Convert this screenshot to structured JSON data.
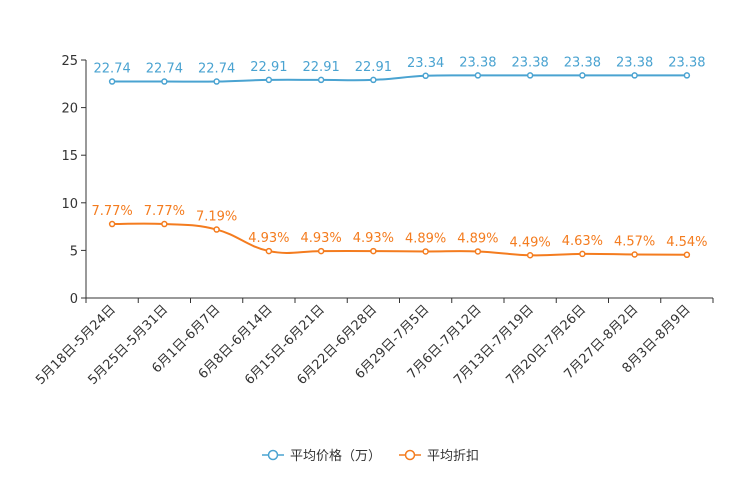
{
  "chart_data": {
    "type": "line",
    "categories": [
      "5月18日-5月24日",
      "5月25日-5月31日",
      "6月1日-6月7日",
      "6月8日-6月14日",
      "6月15日-6月21日",
      "6月22日-6月28日",
      "6月29日-7月5日",
      "7月6日-7月12日",
      "7月13日-7月19日",
      "7月20日-7月26日",
      "7月27日-8月2日",
      "8月3日-8月9日"
    ],
    "series": [
      {
        "name": "平均价格（万）",
        "color": "#4aa3d1",
        "values": [
          22.74,
          22.74,
          22.74,
          22.91,
          22.91,
          22.91,
          23.34,
          23.38,
          23.38,
          23.38,
          23.38,
          23.38
        ],
        "labels": [
          "22.74",
          "22.74",
          "22.74",
          "22.91",
          "22.91",
          "22.91",
          "23.34",
          "23.38",
          "23.38",
          "23.38",
          "23.38",
          "23.38"
        ]
      },
      {
        "name": "平均折扣",
        "color": "#f47c1f",
        "values": [
          7.77,
          7.77,
          7.19,
          4.93,
          4.93,
          4.93,
          4.89,
          4.89,
          4.49,
          4.63,
          4.57,
          4.54
        ],
        "labels": [
          "7.77%",
          "7.77%",
          "7.19%",
          "4.93%",
          "4.93%",
          "4.93%",
          "4.89%",
          "4.89%",
          "4.49%",
          "4.63%",
          "4.57%",
          "4.54%"
        ]
      }
    ],
    "yticks": [
      0,
      5,
      10,
      15,
      20,
      25
    ],
    "ytick_labels": [
      "0",
      "5",
      "10",
      "15",
      "20",
      "25"
    ],
    "ylim": [
      0,
      25
    ],
    "title": "",
    "xlabel": "",
    "ylabel": "",
    "legend_position": "bottom-center",
    "grid": false
  }
}
